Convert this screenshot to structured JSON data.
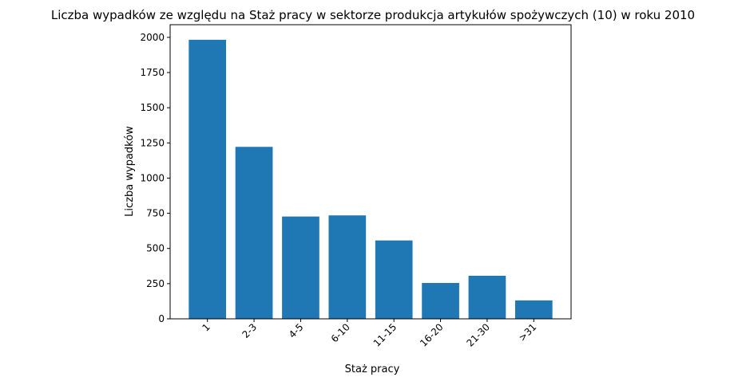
{
  "chart_data": {
    "type": "bar",
    "title": "Liczba wypadków ze względu na Staż pracy w sektorze produkcja artykułów spożywczych  (10)   w roku 2010",
    "xlabel": "Staż pracy",
    "ylabel": "Liczba wypadków",
    "categories": [
      "1",
      "2-3",
      "4-5",
      "6-10",
      "11-15",
      "16-20",
      "21-30",
      ">31"
    ],
    "values": [
      1983,
      1222,
      727,
      735,
      557,
      255,
      306,
      131
    ],
    "ylim": [
      0,
      2090
    ],
    "yticks": [
      0,
      250,
      500,
      750,
      1000,
      1250,
      1500,
      1750,
      2000
    ],
    "bar_color": "#1f77b4",
    "grid": false
  }
}
